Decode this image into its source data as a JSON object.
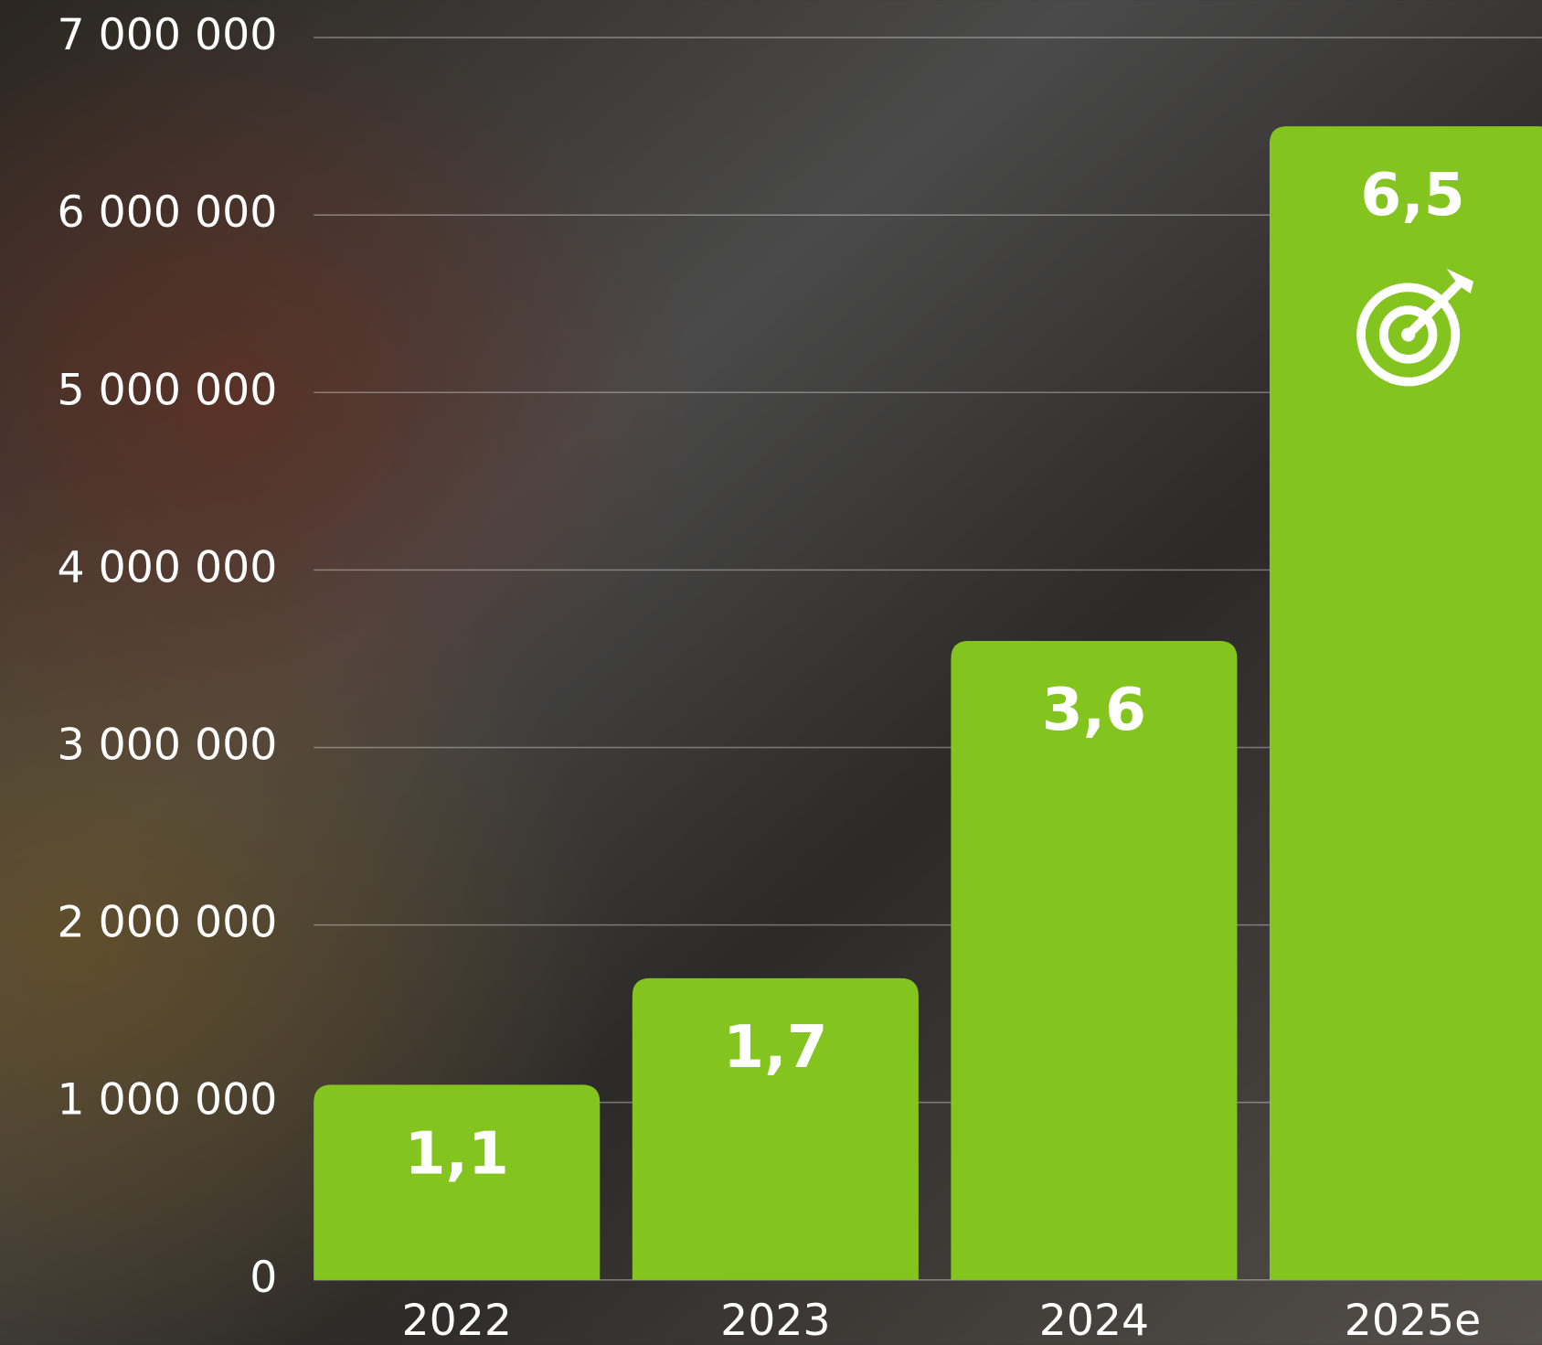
{
  "chart_data": {
    "type": "bar",
    "categories": [
      "2022",
      "2023",
      "2024",
      "2025e"
    ],
    "values": [
      1100000,
      1700000,
      3600000,
      6500000
    ],
    "value_labels": [
      "1,1",
      "1,7",
      "3,6",
      "6,5"
    ],
    "color": "#84c41f",
    "ylim": [
      0,
      7000000
    ],
    "yticks": [
      0,
      {
        "value": 1000000,
        "label": "1 000 000"
      },
      {
        "value": 2000000,
        "label": "2 000 000"
      },
      {
        "value": 3000000,
        "label": "3 000 000"
      },
      {
        "value": 4000000,
        "label": "4 000 000"
      },
      {
        "value": 5000000,
        "label": "5 000 000"
      },
      {
        "value": 6000000,
        "label": "6 000 000"
      },
      {
        "value": 7000000,
        "label": "7 000 000"
      }
    ],
    "grid": true
  }
}
